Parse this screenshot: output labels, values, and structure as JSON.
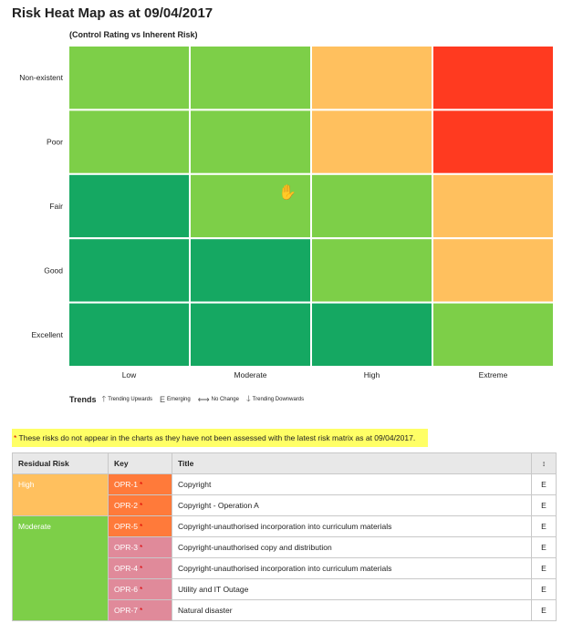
{
  "page": {
    "title": "Risk Heat Map as at 09/04/2017",
    "subtitle": "(Control Rating vs Inherent Risk)"
  },
  "chart_data": {
    "type": "heatmap",
    "x_categories": [
      "Low",
      "Moderate",
      "High",
      "Extreme"
    ],
    "y_categories": [
      "Non-existent",
      "Poor",
      "Fair",
      "Good",
      "Excellent"
    ],
    "cells": [
      [
        "Medium",
        "Medium",
        "High",
        "Extreme"
      ],
      [
        "Medium",
        "Medium",
        "High",
        "Extreme"
      ],
      [
        "Low",
        "Medium",
        "Medium",
        "High"
      ],
      [
        "Low",
        "Low",
        "Medium",
        "High"
      ],
      [
        "Low",
        "Low",
        "Low",
        "Medium"
      ]
    ],
    "colors": {
      "Low": "#15a862",
      "Medium": "#7dcf48",
      "High": "#ffc05e",
      "Extreme": "#ff3a20"
    },
    "grid": true
  },
  "trends": {
    "label": "Trends",
    "items": [
      {
        "glyph": "🡑",
        "icon": "arrow-up-icon",
        "label": "Trending Upwards"
      },
      {
        "glyph": "E",
        "icon": "emerging-icon",
        "label": "Emerging"
      },
      {
        "glyph": "⟷",
        "icon": "arrow-both-icon",
        "label": "No Change"
      },
      {
        "glyph": "🡓",
        "icon": "arrow-down-icon",
        "label": "Trending Downwards"
      }
    ]
  },
  "notice": {
    "star": "*",
    "text": " These risks do not appear in the charts as they have not been assessed with the latest risk matrix as at 09/04/2017."
  },
  "table": {
    "headers": {
      "residual": "Residual Risk",
      "key": "Key",
      "title": "Title",
      "trend": "↕"
    },
    "groups": [
      {
        "name": "High",
        "color": "#ffc05e",
        "rows": [
          {
            "key": "OPR-1",
            "key_color": "#ff7a3a",
            "title": "Copyright",
            "trend": "E"
          },
          {
            "key": "OPR-2",
            "key_color": "#ff7a3a",
            "title": "Copyright - Operation A",
            "trend": "E"
          }
        ]
      },
      {
        "name": "Moderate",
        "color": "#7dcf48",
        "rows": [
          {
            "key": "OPR-5",
            "key_color": "#ff7a3a",
            "title": "Copyright-unauthorised incorporation into curriculum materials",
            "trend": "E"
          },
          {
            "key": "OPR-3",
            "key_color": "#e08a9a",
            "title": "Copyright-unauthorised copy and distribution",
            "trend": "E"
          },
          {
            "key": "OPR-4",
            "key_color": "#e08a9a",
            "title": "Copyright-unauthorised incorporation into curriculum materials",
            "trend": "E"
          },
          {
            "key": "OPR-6",
            "key_color": "#e08a9a",
            "title": "Utility and IT Outage",
            "trend": "E"
          },
          {
            "key": "OPR-7",
            "key_color": "#e08a9a",
            "title": "Natural disaster",
            "trend": "E"
          }
        ]
      }
    ],
    "star": "*"
  }
}
